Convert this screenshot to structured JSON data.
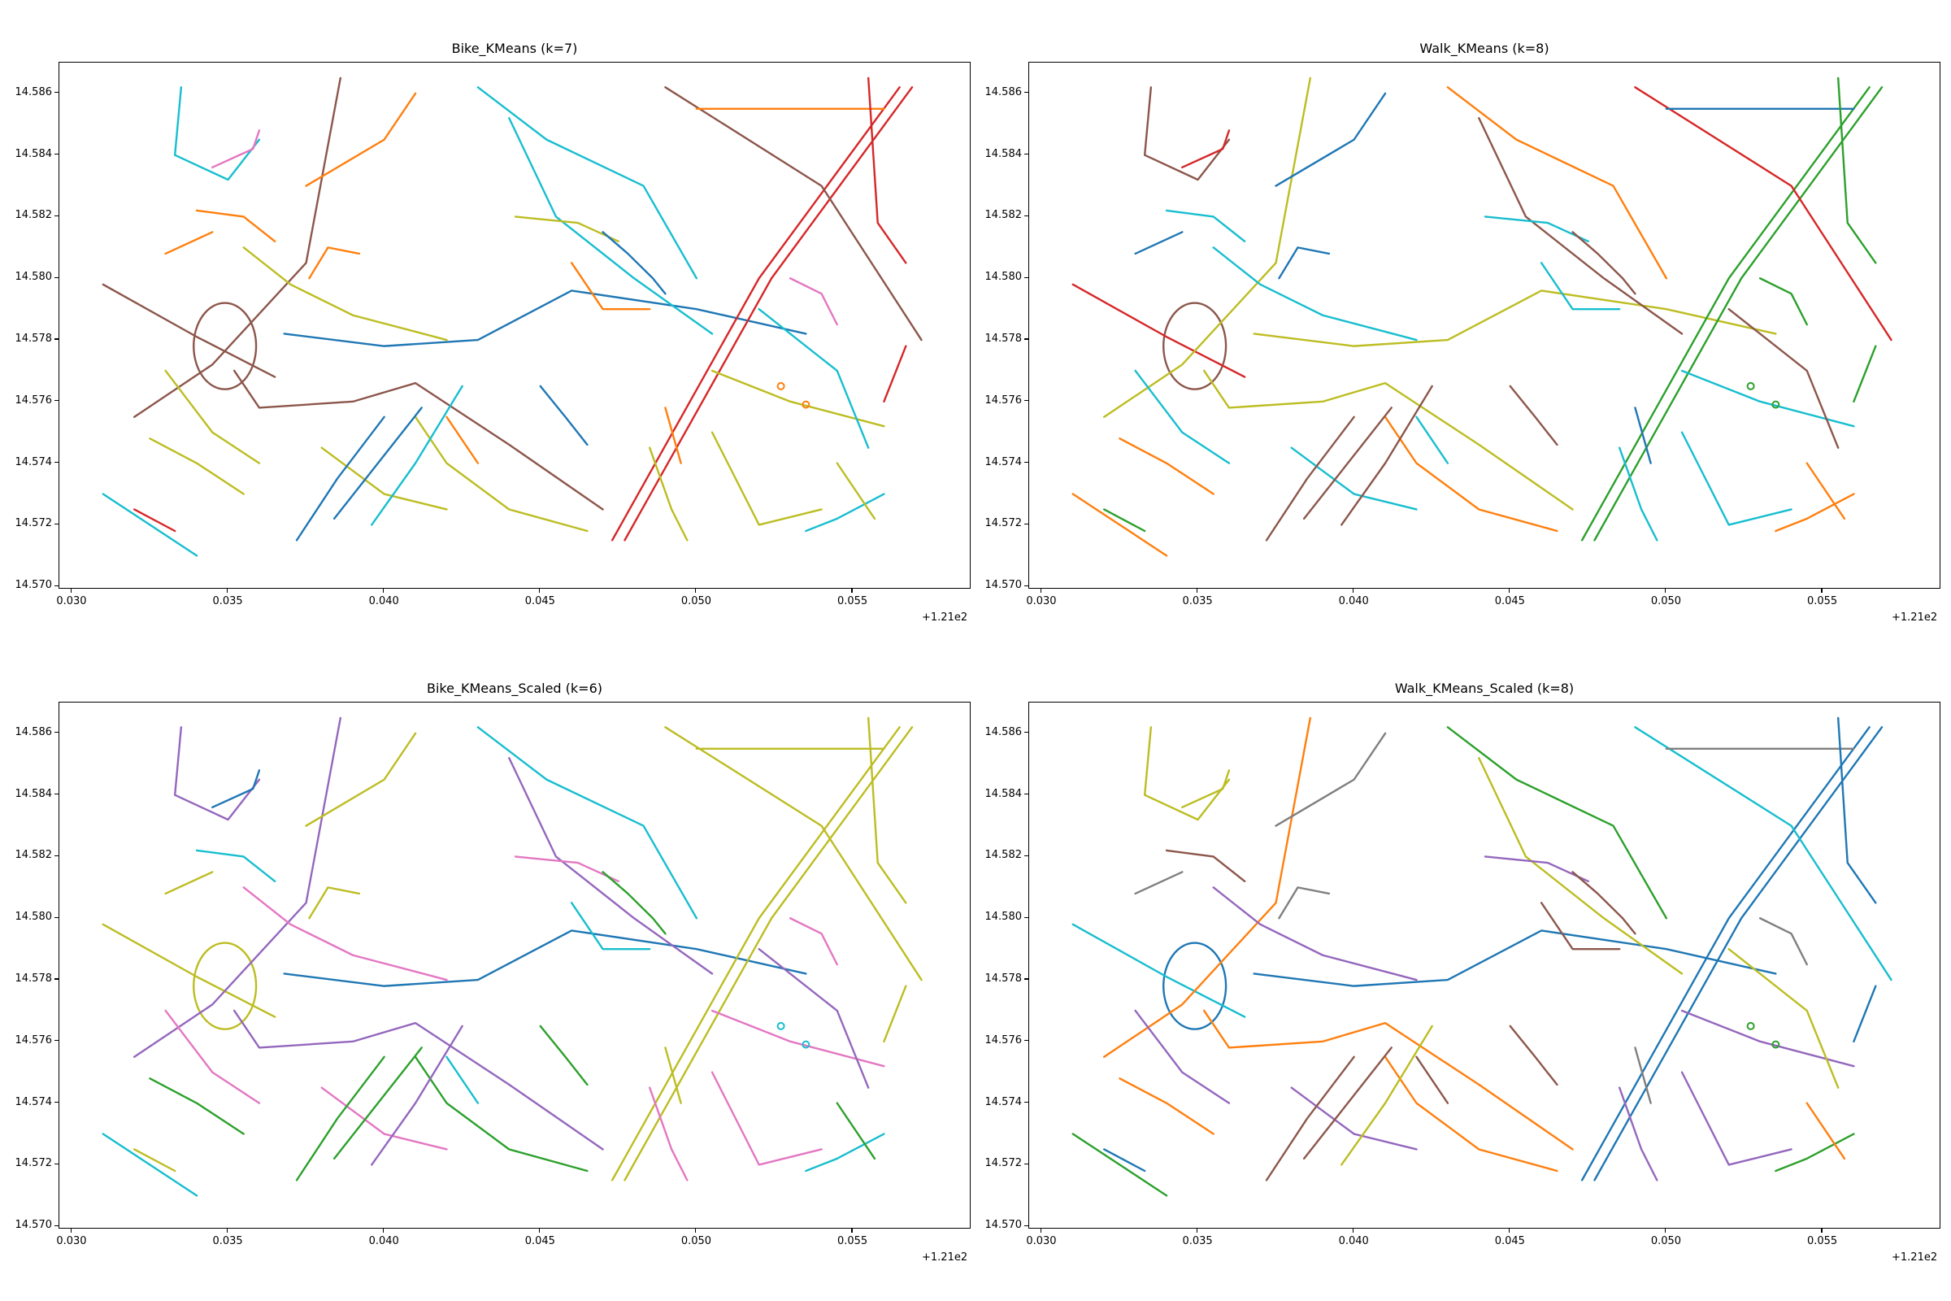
{
  "figure": {
    "layout": "2x2 grid of street-network cluster maps"
  },
  "chart_data": [
    {
      "type": "scatter",
      "title": "Bike_KMeans (k=7)",
      "x_ticks": [
        "0.030",
        "0.035",
        "0.040",
        "0.045",
        "0.050",
        "0.055"
      ],
      "y_ticks": [
        "14.570",
        "14.572",
        "14.574",
        "14.576",
        "14.578",
        "14.580",
        "14.582",
        "14.584",
        "14.586"
      ],
      "x_offset_label": "+1.21e2",
      "xlim": [
        0.0296,
        0.0588
      ],
      "ylim": [
        14.5699,
        14.587
      ],
      "k": 7,
      "palette": [
        "#ff7f0e",
        "#bcbd22",
        "#17becf",
        "#1f77b4",
        "#8c564b",
        "#e377c2",
        "#d62728"
      ]
    },
    {
      "type": "scatter",
      "title": "Walk_KMeans (k=8)",
      "x_ticks": [
        "0.030",
        "0.035",
        "0.040",
        "0.045",
        "0.050",
        "0.055"
      ],
      "y_ticks": [
        "14.570",
        "14.572",
        "14.574",
        "14.576",
        "14.578",
        "14.580",
        "14.582",
        "14.584",
        "14.586"
      ],
      "x_offset_label": "+1.21e2",
      "xlim": [
        0.0296,
        0.0588
      ],
      "ylim": [
        14.5699,
        14.587
      ],
      "k": 8,
      "palette": [
        "#2ca02c",
        "#9467bd",
        "#1f77b4",
        "#17becf",
        "#ff7f0e",
        "#8c564b",
        "#bcbd22",
        "#d62728"
      ]
    },
    {
      "type": "scatter",
      "title": "Bike_KMeans_Scaled (k=6)",
      "x_ticks": [
        "0.030",
        "0.035",
        "0.040",
        "0.045",
        "0.050",
        "0.055"
      ],
      "y_ticks": [
        "14.570",
        "14.572",
        "14.574",
        "14.576",
        "14.578",
        "14.580",
        "14.582",
        "14.584",
        "14.586"
      ],
      "x_offset_label": "+1.21e2",
      "xlim": [
        0.0296,
        0.0588
      ],
      "ylim": [
        14.5699,
        14.587
      ],
      "k": 6,
      "palette": [
        "#17becf",
        "#2ca02c",
        "#9467bd",
        "#1f77b4",
        "#bcbd22",
        "#e377c2"
      ]
    },
    {
      "type": "scatter",
      "title": "Walk_KMeans_Scaled (k=8)",
      "x_ticks": [
        "0.030",
        "0.035",
        "0.040",
        "0.045",
        "0.050",
        "0.055"
      ],
      "y_ticks": [
        "14.570",
        "14.572",
        "14.574",
        "14.576",
        "14.578",
        "14.580",
        "14.582",
        "14.584",
        "14.586"
      ],
      "x_offset_label": "+1.21e2",
      "xlim": [
        0.0296,
        0.0588
      ],
      "ylim": [
        14.5699,
        14.587
      ],
      "k": 8,
      "palette": [
        "#2ca02c",
        "#8c564b",
        "#ff7f0e",
        "#bcbd22",
        "#1f77b4",
        "#17becf",
        "#7f7f7f",
        "#9467bd"
      ]
    }
  ]
}
